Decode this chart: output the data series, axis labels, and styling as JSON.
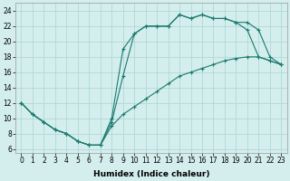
{
  "line1_x": [
    0,
    1,
    2,
    3,
    4,
    5,
    6,
    7,
    8,
    9,
    10,
    11,
    12,
    13,
    14,
    15,
    16,
    17,
    18,
    19,
    20,
    21,
    22,
    23
  ],
  "line1_y": [
    12,
    10.5,
    9.5,
    8.5,
    8.0,
    7.0,
    6.5,
    6.5,
    9.5,
    15.5,
    21.0,
    22.0,
    22.0,
    22.0,
    23.5,
    23.0,
    23.5,
    23.0,
    23.0,
    22.5,
    21.5,
    18.0,
    17.5,
    17.0
  ],
  "line2_x": [
    0,
    1,
    2,
    3,
    4,
    5,
    6,
    7,
    8,
    9,
    10,
    11,
    12,
    13,
    14,
    15,
    16,
    17,
    18,
    19,
    20,
    21,
    22,
    23
  ],
  "line2_y": [
    12.0,
    10.5,
    9.5,
    8.5,
    8.0,
    7.0,
    6.5,
    6.5,
    9.0,
    10.5,
    11.5,
    12.5,
    13.5,
    14.5,
    15.5,
    16.0,
    16.5,
    17.0,
    17.5,
    17.8,
    18.0,
    18.0,
    17.5,
    17.0
  ],
  "line3_x": [
    0,
    1,
    2,
    3,
    4,
    5,
    6,
    7,
    8,
    9,
    10,
    11,
    12,
    13,
    14,
    15,
    16,
    17,
    18,
    19,
    20,
    21,
    22,
    23
  ],
  "line3_y": [
    12.0,
    10.5,
    9.5,
    8.5,
    8.0,
    7.0,
    6.5,
    6.5,
    10.0,
    19.0,
    21.0,
    22.0,
    22.0,
    22.0,
    23.5,
    23.0,
    23.5,
    23.0,
    23.0,
    22.5,
    22.5,
    21.5,
    18.0,
    17.0
  ],
  "color": "#1a7a6e",
  "bg_color": "#d4eeee",
  "grid_color": "#b0d8d8",
  "xlabel": "Humidex (Indice chaleur)",
  "xlim": [
    -0.5,
    23.5
  ],
  "ylim": [
    5.5,
    25.0
  ],
  "xticks": [
    0,
    1,
    2,
    3,
    4,
    5,
    6,
    7,
    8,
    9,
    10,
    11,
    12,
    13,
    14,
    15,
    16,
    17,
    18,
    19,
    20,
    21,
    22,
    23
  ],
  "yticks": [
    6,
    8,
    10,
    12,
    14,
    16,
    18,
    20,
    22,
    24
  ],
  "axis_fontsize": 6.5,
  "tick_fontsize": 5.5,
  "marker_size": 3,
  "linewidth": 0.8
}
